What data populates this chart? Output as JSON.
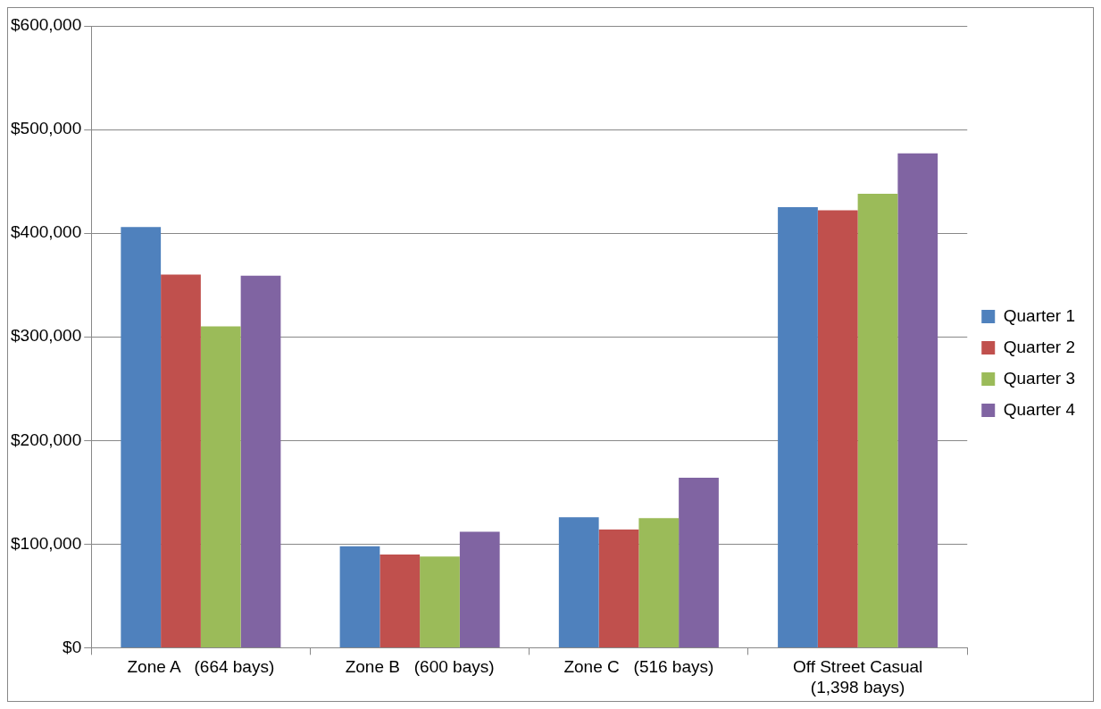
{
  "chart_data": {
    "type": "bar",
    "categories": [
      "Zone A   (664 bays)",
      "Zone B   (600 bays)",
      "Zone C   (516 bays)",
      "Off Street Casual (1,398 bays)"
    ],
    "series": [
      {
        "name": "Quarter 1",
        "color": "#4f81bd",
        "values": [
          406000,
          98000,
          126000,
          425000
        ]
      },
      {
        "name": "Quarter 2",
        "color": "#c0504d",
        "values": [
          360000,
          90000,
          114000,
          422000
        ]
      },
      {
        "name": "Quarter 3",
        "color": "#9bbb59",
        "values": [
          310000,
          88000,
          125000,
          438000
        ]
      },
      {
        "name": "Quarter 4",
        "color": "#8064a2",
        "values": [
          359000,
          112000,
          164000,
          477000
        ]
      }
    ],
    "ylim": [
      0,
      600000
    ],
    "yticks": [
      {
        "value": 0,
        "label": "$0"
      },
      {
        "value": 100000,
        "label": "$100,000"
      },
      {
        "value": 200000,
        "label": "$200,000"
      },
      {
        "value": 300000,
        "label": "$300,000"
      },
      {
        "value": 400000,
        "label": "$400,000"
      },
      {
        "value": 500000,
        "label": "$500,000"
      },
      {
        "value": 600000,
        "label": "$600,000"
      }
    ],
    "grid": "y",
    "legend": "right"
  }
}
